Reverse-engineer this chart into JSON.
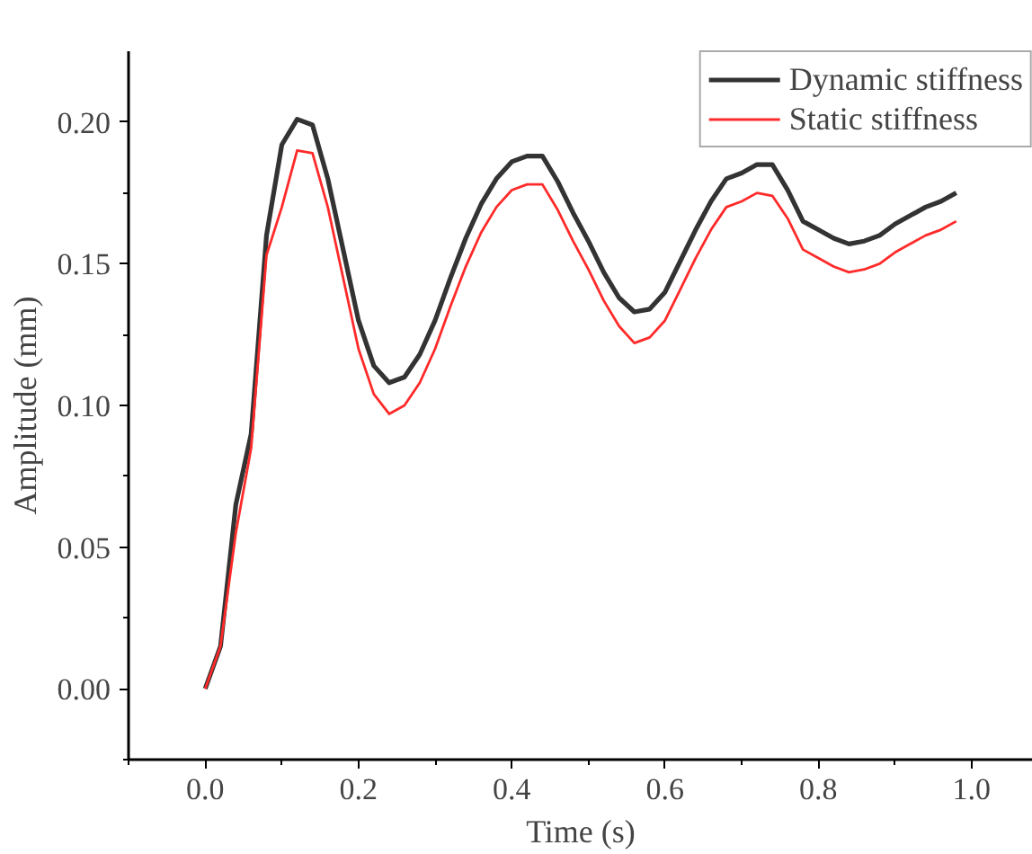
{
  "chart_data": {
    "type": "line",
    "xlabel": "Time (s)",
    "ylabel": "Amplitude (mm)",
    "x": [
      0.0,
      0.02,
      0.04,
      0.06,
      0.08,
      0.1,
      0.12,
      0.14,
      0.16,
      0.18,
      0.2,
      0.22,
      0.24,
      0.26,
      0.28,
      0.3,
      0.32,
      0.34,
      0.36,
      0.38,
      0.4,
      0.42,
      0.44,
      0.46,
      0.48,
      0.5,
      0.52,
      0.54,
      0.56,
      0.58,
      0.6,
      0.62,
      0.64,
      0.66,
      0.68,
      0.7,
      0.72,
      0.74,
      0.76,
      0.78,
      0.8,
      0.82,
      0.84,
      0.86,
      0.88,
      0.9,
      0.92,
      0.94,
      0.96,
      0.98
    ],
    "series": [
      {
        "name": "Dynamic stiffness",
        "color": "#333333",
        "values": [
          0.0,
          0.015,
          0.065,
          0.09,
          0.16,
          0.192,
          0.201,
          0.199,
          0.18,
          0.155,
          0.13,
          0.114,
          0.108,
          0.11,
          0.118,
          0.13,
          0.145,
          0.159,
          0.171,
          0.18,
          0.186,
          0.188,
          0.188,
          0.179,
          0.168,
          0.158,
          0.147,
          0.138,
          0.133,
          0.134,
          0.14,
          0.151,
          0.162,
          0.172,
          0.18,
          0.182,
          0.185,
          0.185,
          0.176,
          0.165,
          0.162,
          0.159,
          0.157,
          0.158,
          0.16,
          0.164,
          0.167,
          0.17,
          0.172,
          0.175
        ]
      },
      {
        "name": "Static stiffness",
        "color": "#ff2a2a",
        "values": [
          0.0,
          0.015,
          0.055,
          0.085,
          0.153,
          0.17,
          0.19,
          0.189,
          0.17,
          0.145,
          0.12,
          0.104,
          0.097,
          0.1,
          0.108,
          0.12,
          0.135,
          0.149,
          0.161,
          0.17,
          0.176,
          0.178,
          0.178,
          0.169,
          0.158,
          0.148,
          0.137,
          0.128,
          0.122,
          0.124,
          0.13,
          0.141,
          0.152,
          0.162,
          0.17,
          0.172,
          0.175,
          0.174,
          0.166,
          0.155,
          0.152,
          0.149,
          0.147,
          0.148,
          0.15,
          0.154,
          0.157,
          0.16,
          0.162,
          0.165
        ]
      }
    ],
    "xlim": [
      -0.1,
      1.08
    ],
    "ylim": [
      -0.025,
      0.225
    ],
    "xticks": [
      {
        "value": 0.0,
        "label": "0.0"
      },
      0.2,
      0.4,
      0.6,
      0.8,
      {
        "value": 1.0,
        "label": "1.0"
      }
    ],
    "yticks": [
      {
        "value": 0.0,
        "label": "0.00"
      },
      0.05,
      {
        "value": 0.1,
        "label": "0.10"
      },
      0.15,
      {
        "value": 0.2,
        "label": "0.20"
      }
    ],
    "grid": false,
    "legend": "top right",
    "line_style": "solid",
    "marker": "none"
  }
}
